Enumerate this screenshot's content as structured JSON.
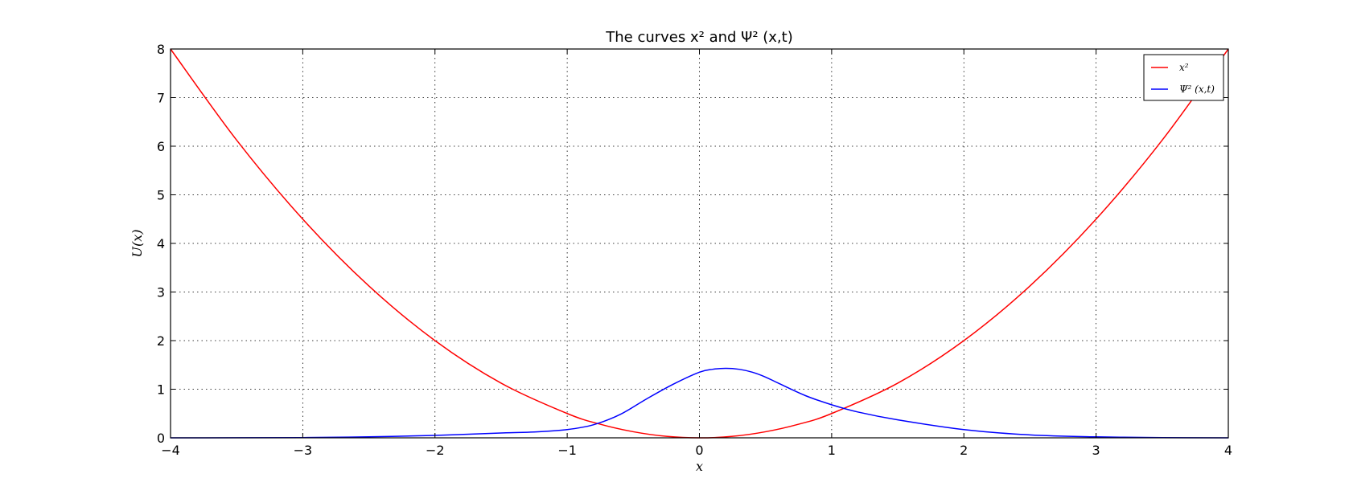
{
  "chart_data": {
    "type": "line",
    "title": "The curves x² and Ψ² (x,t)",
    "xlabel": "x",
    "ylabel": "U(x)",
    "xlim": [
      -4,
      4
    ],
    "ylim": [
      0,
      8
    ],
    "xticks": [
      -4,
      -3,
      -2,
      -1,
      0,
      1,
      2,
      3,
      4
    ],
    "yticks": [
      0,
      1,
      2,
      3,
      4,
      5,
      6,
      7,
      8
    ],
    "xtick_labels": [
      "−4",
      "−3",
      "−2",
      "−1",
      "0",
      "1",
      "2",
      "3",
      "4"
    ],
    "ytick_labels": [
      "0",
      "1",
      "2",
      "3",
      "4",
      "5",
      "6",
      "7",
      "8"
    ],
    "grid": true,
    "legend_position": "top-right",
    "series": [
      {
        "name": "x²",
        "color": "#ff0000",
        "x": [
          -4,
          -3.5,
          -3,
          -2.5,
          -2,
          -1.5,
          -1,
          -0.75,
          -0.5,
          -0.25,
          0,
          0.25,
          0.5,
          0.75,
          1,
          1.5,
          2,
          2.5,
          3,
          3.5,
          4
        ],
        "y": [
          8,
          6.125,
          4.5,
          3.125,
          2,
          1.125,
          0.5,
          0.28,
          0.125,
          0.03,
          0,
          0.03,
          0.125,
          0.28,
          0.5,
          1.125,
          2,
          3.125,
          4.5,
          6.125,
          8
        ]
      },
      {
        "name": "Ψ² (x,t)",
        "color": "#0000ff",
        "x": [
          -4,
          -3,
          -2.5,
          -2,
          -1.5,
          -1.25,
          -1,
          -0.8,
          -0.6,
          -0.4,
          -0.2,
          0,
          0.1,
          0.2,
          0.3,
          0.4,
          0.5,
          0.6,
          0.8,
          1,
          1.2,
          1.5,
          2,
          2.5,
          3,
          3.5,
          4
        ],
        "y": [
          0,
          0.005,
          0.02,
          0.05,
          0.1,
          0.12,
          0.17,
          0.27,
          0.48,
          0.8,
          1.1,
          1.35,
          1.41,
          1.43,
          1.41,
          1.35,
          1.25,
          1.12,
          0.87,
          0.68,
          0.53,
          0.37,
          0.17,
          0.06,
          0.02,
          0.005,
          0
        ]
      }
    ]
  }
}
